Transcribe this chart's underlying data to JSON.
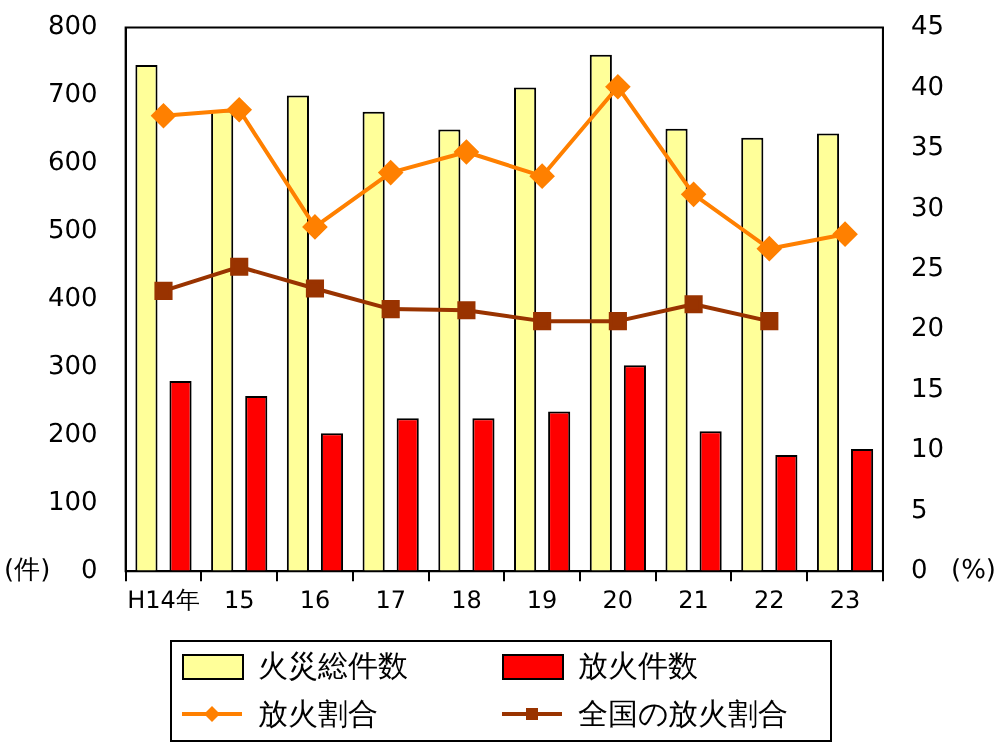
{
  "chart_data": {
    "type": "bar",
    "categories": [
      "H14年",
      "15",
      "16",
      "17",
      "18",
      "19",
      "20",
      "21",
      "22",
      "23"
    ],
    "ylabel": "(件)",
    "y2label": "(%)",
    "series": [
      {
        "name": "火災総件数",
        "color": "#ffff99",
        "values": [
          745,
          678,
          700,
          676,
          650,
          712,
          760,
          651,
          638,
          644
        ]
      },
      {
        "name": "放火件数",
        "color": "#ff0000",
        "values": [
          280,
          258,
          203,
          225,
          225,
          235,
          303,
          206,
          171,
          180
        ]
      },
      {
        "name": "放火割合",
        "type": "line",
        "axis": "y2",
        "color": "#ff8000",
        "marker": "diamond",
        "values": [
          37.7,
          38.2,
          28.5,
          33.0,
          34.7,
          32.7,
          40.1,
          31.2,
          26.7,
          27.9
        ]
      },
      {
        "name": "全国の放火割合",
        "type": "line",
        "axis": "y2",
        "color": "#993300",
        "marker": "square",
        "values": [
          23.2,
          25.2,
          23.4,
          21.7,
          21.6,
          20.7,
          20.7,
          22.1,
          20.7,
          null
        ]
      }
    ],
    "ylim": [
      0,
      800
    ],
    "yticks": [
      0,
      100,
      200,
      300,
      400,
      500,
      600,
      700,
      800
    ],
    "y2lim": [
      0,
      45
    ],
    "y2ticks": [
      0,
      5,
      10,
      15,
      20,
      25,
      30,
      35,
      40,
      45
    ],
    "grid": false,
    "legend": "bottom"
  }
}
